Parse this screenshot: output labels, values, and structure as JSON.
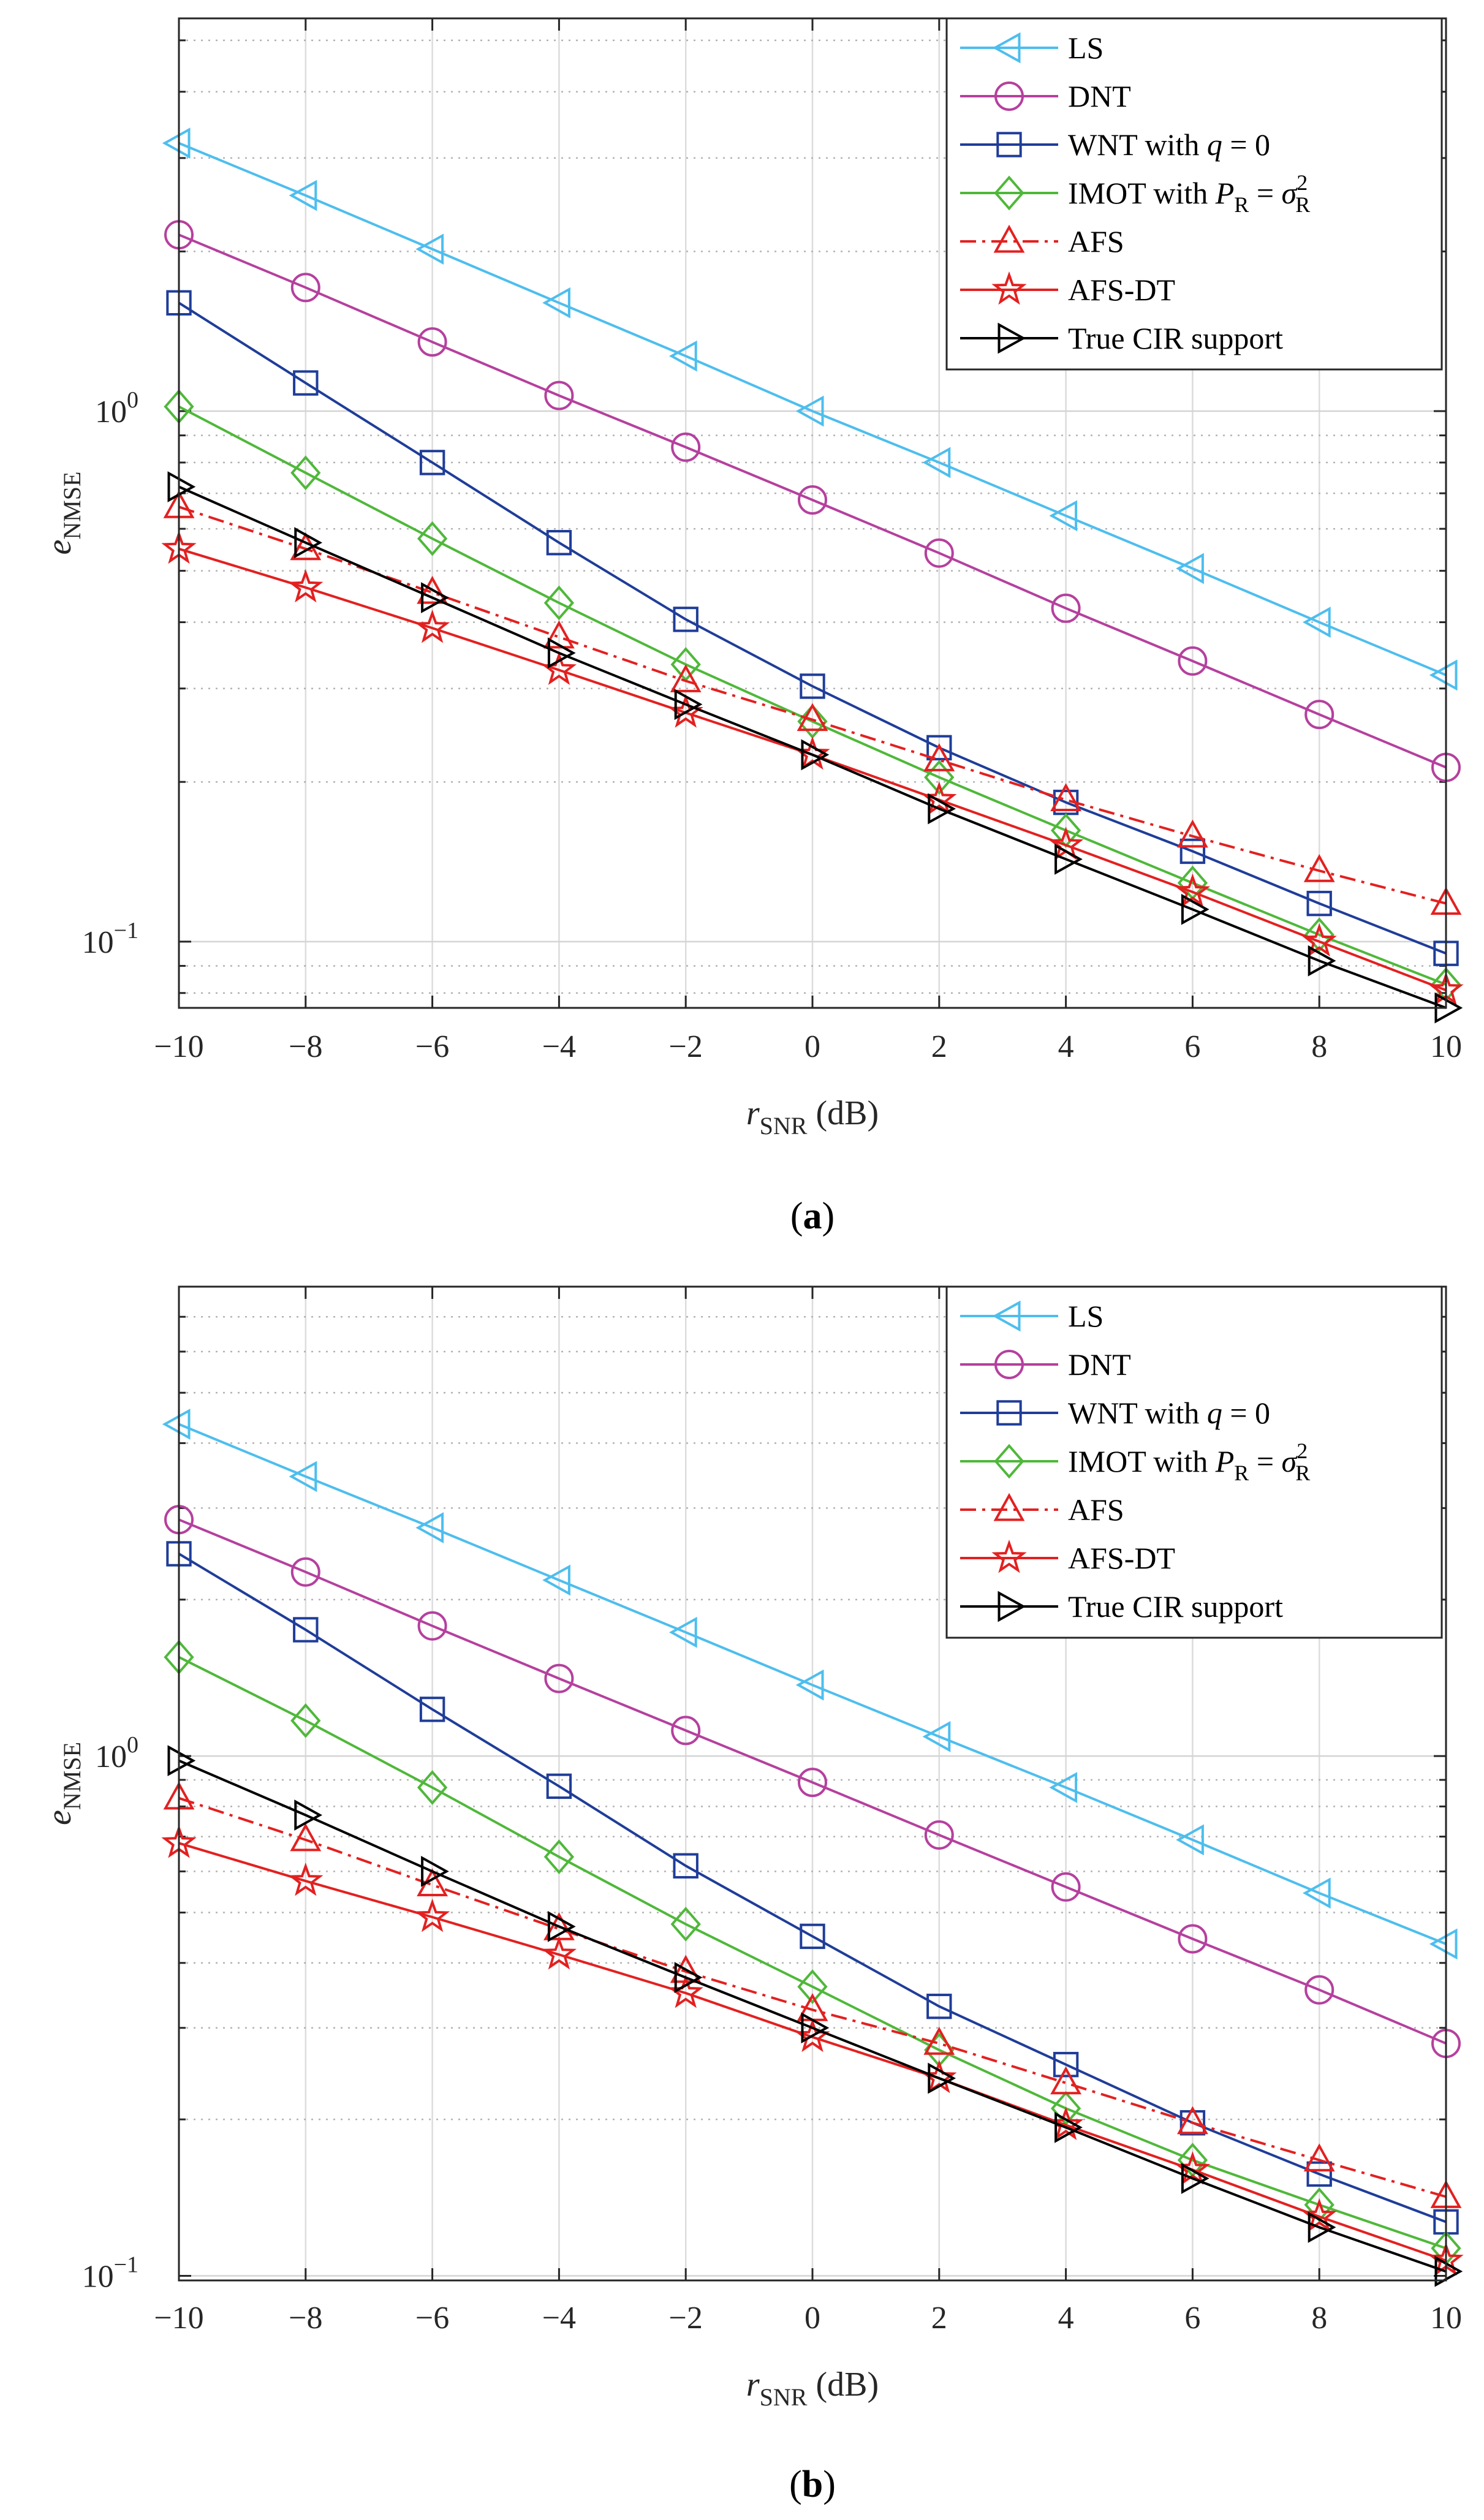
{
  "chart_data": [
    {
      "type": "line",
      "panel_label": "(a)",
      "title": "",
      "xlabel": "r_SNR (dB)",
      "ylabel": "e_NMSE",
      "xlabel_main": "r",
      "xlabel_sub": "SNR",
      "xlabel_unit": " (dB)",
      "ylabel_main": "e",
      "ylabel_sub": "NMSE",
      "yscale": "log",
      "xlim": [
        -10,
        10
      ],
      "ylim": [
        0.075,
        5.5
      ],
      "grid": true,
      "legend_position": "top-right",
      "x": [
        -10,
        -8,
        -6,
        -4,
        -2,
        0,
        2,
        4,
        6,
        8,
        10
      ],
      "x_tick_labels": [
        "−10",
        "−8",
        "−6",
        "−4",
        "−2",
        "0",
        "2",
        "4",
        "6",
        "8",
        "10"
      ],
      "y_tick_labels": [
        {
          "mantissa": "10",
          "exponent": "−1",
          "value": 0.1
        },
        {
          "mantissa": "10",
          "exponent": "0",
          "value": 1
        }
      ],
      "series": [
        {
          "name": "LS",
          "values": [
            3.2,
            2.55,
            2.02,
            1.6,
            1.27,
            1.0,
            0.8,
            0.635,
            0.505,
            0.4,
            0.318
          ],
          "color": "#4dbeee",
          "marker": "triangle-left",
          "dash": "solid"
        },
        {
          "name": "DNT",
          "values": [
            2.15,
            1.71,
            1.35,
            1.07,
            0.855,
            0.68,
            0.54,
            0.425,
            0.338,
            0.268,
            0.213
          ],
          "color": "#b5409e",
          "marker": "circle",
          "dash": "solid"
        },
        {
          "name": "WNT with q = 0",
          "values": [
            1.6,
            1.13,
            0.8,
            0.565,
            0.405,
            0.303,
            0.232,
            0.183,
            0.148,
            0.118,
            0.095
          ],
          "color": "#1f3d99",
          "marker": "square",
          "dash": "solid"
        },
        {
          "name": "IMOT with P_R = σ_R^2",
          "values": [
            1.02,
            0.765,
            0.575,
            0.435,
            0.333,
            0.26,
            0.204,
            0.162,
            0.129,
            0.103,
            0.083
          ],
          "color": "#4fb83a",
          "marker": "diamond",
          "dash": "solid"
        },
        {
          "name": "AFS",
          "values": [
            0.66,
            0.55,
            0.455,
            0.375,
            0.31,
            0.262,
            0.22,
            0.185,
            0.158,
            0.136,
            0.118
          ],
          "color": "#e32020",
          "marker": "triangle-up",
          "dash": "dashdot"
        },
        {
          "name": "AFS-DT",
          "values": [
            0.55,
            0.465,
            0.39,
            0.325,
            0.27,
            0.225,
            0.185,
            0.152,
            0.124,
            0.1,
            0.081
          ],
          "color": "#e32020",
          "marker": "star",
          "dash": "solid"
        },
        {
          "name": "True CIR support",
          "values": [
            0.72,
            0.565,
            0.445,
            0.35,
            0.28,
            0.225,
            0.178,
            0.143,
            0.115,
            0.092,
            0.075
          ],
          "color": "#000000",
          "marker": "triangle-right",
          "dash": "solid"
        }
      ]
    },
    {
      "type": "line",
      "panel_label": "(b)",
      "title": "",
      "xlabel": "r_SNR (dB)",
      "ylabel": "e_NMSE",
      "xlabel_main": "r",
      "xlabel_sub": "SNR",
      "xlabel_unit": " (dB)",
      "ylabel_main": "e",
      "ylabel_sub": "NMSE",
      "yscale": "log",
      "xlim": [
        -10,
        10
      ],
      "ylim": [
        0.098,
        8.0
      ],
      "grid": true,
      "legend_position": "top-right",
      "x": [
        -10,
        -8,
        -6,
        -4,
        -2,
        0,
        2,
        4,
        6,
        8,
        10
      ],
      "x_tick_labels": [
        "−10",
        "−8",
        "−6",
        "−4",
        "−2",
        "0",
        "2",
        "4",
        "6",
        "8",
        "10"
      ],
      "y_tick_labels": [
        {
          "mantissa": "10",
          "exponent": "−1",
          "value": 0.1
        },
        {
          "mantissa": "10",
          "exponent": "0",
          "value": 1
        }
      ],
      "series": [
        {
          "name": "LS",
          "values": [
            4.35,
            3.45,
            2.75,
            2.18,
            1.73,
            1.37,
            1.09,
            0.87,
            0.69,
            0.545,
            0.435
          ],
          "color": "#4dbeee",
          "marker": "triangle-left",
          "dash": "solid"
        },
        {
          "name": "DNT",
          "values": [
            2.85,
            2.26,
            1.78,
            1.41,
            1.12,
            0.89,
            0.705,
            0.56,
            0.445,
            0.355,
            0.28
          ],
          "color": "#b5409e",
          "marker": "circle",
          "dash": "solid"
        },
        {
          "name": "WNT with q = 0",
          "values": [
            2.45,
            1.75,
            1.23,
            0.875,
            0.615,
            0.45,
            0.33,
            0.255,
            0.197,
            0.157,
            0.127
          ],
          "color": "#1f3d99",
          "marker": "square",
          "dash": "solid"
        },
        {
          "name": "IMOT with P_R = σ_R^2",
          "values": [
            1.55,
            1.17,
            0.87,
            0.64,
            0.475,
            0.36,
            0.272,
            0.21,
            0.167,
            0.137,
            0.113
          ],
          "color": "#4fb83a",
          "marker": "diamond",
          "dash": "solid"
        },
        {
          "name": "AFS",
          "values": [
            0.83,
            0.69,
            0.565,
            0.465,
            0.385,
            0.325,
            0.28,
            0.235,
            0.197,
            0.167,
            0.142
          ],
          "color": "#e32020",
          "marker": "triangle-up",
          "dash": "dashdot"
        },
        {
          "name": "AFS-DT",
          "values": [
            0.68,
            0.575,
            0.49,
            0.415,
            0.35,
            0.288,
            0.24,
            0.195,
            0.16,
            0.13,
            0.107
          ],
          "color": "#e32020",
          "marker": "star",
          "dash": "solid"
        },
        {
          "name": "True CIR support",
          "values": [
            0.98,
            0.77,
            0.6,
            0.47,
            0.375,
            0.3,
            0.24,
            0.193,
            0.154,
            0.124,
            0.102
          ],
          "color": "#000000",
          "marker": "triangle-right",
          "dash": "solid"
        }
      ]
    }
  ]
}
